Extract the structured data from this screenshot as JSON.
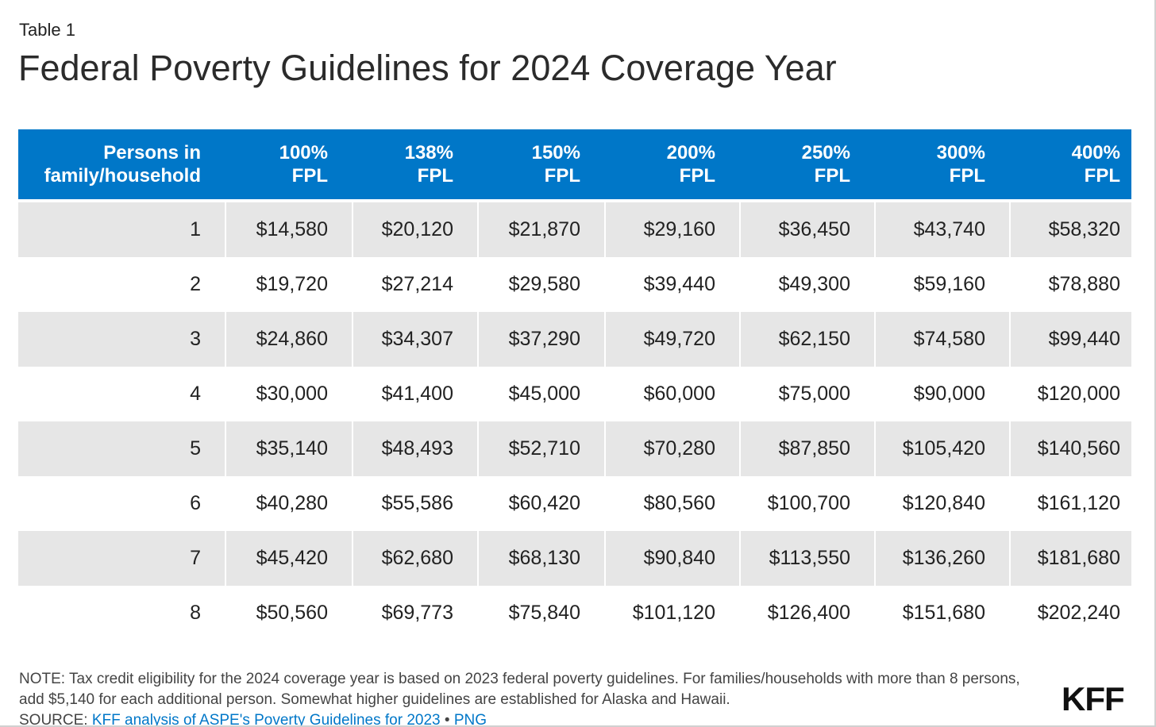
{
  "table_label": "Table 1",
  "title": "Federal Poverty Guidelines for 2024 Coverage Year",
  "columns": [
    [
      "Persons in",
      "family/household"
    ],
    [
      "100%",
      "FPL"
    ],
    [
      "138%",
      "FPL"
    ],
    [
      "150%",
      "FPL"
    ],
    [
      "200%",
      "FPL"
    ],
    [
      "250%",
      "FPL"
    ],
    [
      "300%",
      "FPL"
    ],
    [
      "400%",
      "FPL"
    ]
  ],
  "rows": [
    [
      "1",
      "$14,580",
      "$20,120",
      "$21,870",
      "$29,160",
      "$36,450",
      "$43,740",
      "$58,320"
    ],
    [
      "2",
      "$19,720",
      "$27,214",
      "$29,580",
      "$39,440",
      "$49,300",
      "$59,160",
      "$78,880"
    ],
    [
      "3",
      "$24,860",
      "$34,307",
      "$37,290",
      "$49,720",
      "$62,150",
      "$74,580",
      "$99,440"
    ],
    [
      "4",
      "$30,000",
      "$41,400",
      "$45,000",
      "$60,000",
      "$75,000",
      "$90,000",
      "$120,000"
    ],
    [
      "5",
      "$35,140",
      "$48,493",
      "$52,710",
      "$70,280",
      "$87,850",
      "$105,420",
      "$140,560"
    ],
    [
      "6",
      "$40,280",
      "$55,586",
      "$60,420",
      "$80,560",
      "$100,700",
      "$120,840",
      "$161,120"
    ],
    [
      "7",
      "$45,420",
      "$62,680",
      "$68,130",
      "$90,840",
      "$113,550",
      "$136,260",
      "$181,680"
    ],
    [
      "8",
      "$50,560",
      "$69,773",
      "$75,840",
      "$101,120",
      "$126,400",
      "$151,680",
      "$202,240"
    ]
  ],
  "note": "NOTE: Tax credit eligibility for the 2024 coverage year is based on 2023 federal poverty guidelines. For families/households with more than 8 persons, add $5,140 for each additional person. Somewhat higher guidelines are established for Alaska and Hawaii.",
  "source": {
    "prefix": "SOURCE: ",
    "link_text": "KFF analysis of ASPE's Poverty Guidelines for 2023",
    "separator": " • ",
    "png_link": "PNG"
  },
  "logo": "KFF",
  "colors": {
    "header_bg": "#0077c8",
    "row_shade": "#e6e6e6",
    "link": "#0077c8"
  }
}
